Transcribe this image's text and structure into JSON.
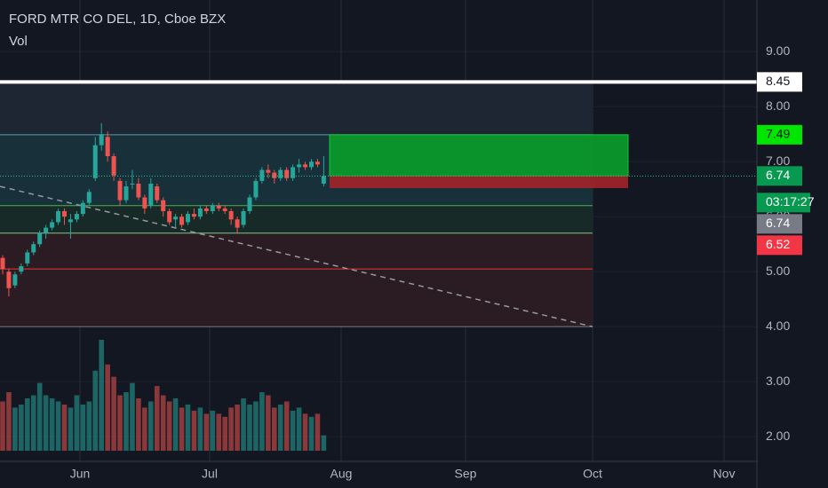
{
  "chart_data": {
    "type": "candlestick",
    "title": "FORD MTR CO DEL, 1D, Cboe BZX",
    "subtitle": "Vol",
    "ylim": [
      1.55,
      9.94
    ],
    "yticks": [
      {
        "value": 2,
        "label": "2.00"
      },
      {
        "value": 3,
        "label": "3.00"
      },
      {
        "value": 4,
        "label": "4.00"
      },
      {
        "value": 5,
        "label": "5.00"
      },
      {
        "value": 6,
        "label": "6.00"
      },
      {
        "value": 7,
        "label": "7.00"
      },
      {
        "value": 8,
        "label": "8.00"
      },
      {
        "value": 9,
        "label": "9.00"
      }
    ],
    "xticks": [
      "Jun",
      "Jul",
      "Aug",
      "Sep",
      "Oct",
      "Nov"
    ],
    "grid": true,
    "up_color": "#26a69a",
    "down_color": "#ef5350",
    "open": [
      5.25,
      5.0,
      4.75,
      5.0,
      5.15,
      5.35,
      5.5,
      5.7,
      5.8,
      5.9,
      6.1,
      5.9,
      5.95,
      6.05,
      6.25,
      6.7,
      7.3,
      7.45,
      7.1,
      6.65,
      6.3,
      6.6,
      6.6,
      6.35,
      6.2,
      6.55,
      6.3,
      6.1,
      5.95,
      6.0,
      5.9,
      6.05,
      6.0,
      6.15,
      6.1,
      6.2,
      6.15,
      6.1,
      5.95,
      5.85,
      6.1,
      6.35,
      6.65,
      6.85,
      6.8,
      6.7,
      6.85,
      6.7,
      6.9,
      6.95,
      6.9,
      7.0,
      6.6
    ],
    "high": [
      5.3,
      5.05,
      5.0,
      5.15,
      5.4,
      5.55,
      5.75,
      5.85,
      5.95,
      6.15,
      6.15,
      6.05,
      6.1,
      6.3,
      6.5,
      7.45,
      7.7,
      7.55,
      7.15,
      6.7,
      6.65,
      6.85,
      6.7,
      6.4,
      6.7,
      6.6,
      6.35,
      6.15,
      6.05,
      6.05,
      6.1,
      6.15,
      6.2,
      6.2,
      6.25,
      6.25,
      6.2,
      6.15,
      6.0,
      6.15,
      6.4,
      6.7,
      6.9,
      6.95,
      6.85,
      6.9,
      6.9,
      6.95,
      7.05,
      7.0,
      7.05,
      7.05,
      7.1
    ],
    "low": [
      4.95,
      4.55,
      4.7,
      4.95,
      5.1,
      5.3,
      5.45,
      5.6,
      5.75,
      5.85,
      5.85,
      5.6,
      5.9,
      6.0,
      6.2,
      6.65,
      7.2,
      7.0,
      6.65,
      6.2,
      6.25,
      6.5,
      6.3,
      6.05,
      6.15,
      6.25,
      6.0,
      5.85,
      5.8,
      5.8,
      5.85,
      5.95,
      5.95,
      6.05,
      6.05,
      6.1,
      6.05,
      5.85,
      5.7,
      5.8,
      6.05,
      6.3,
      6.6,
      6.7,
      6.6,
      6.65,
      6.65,
      6.65,
      6.8,
      6.85,
      6.85,
      6.9,
      6.55
    ],
    "close": [
      5.05,
      4.7,
      4.95,
      5.1,
      5.35,
      5.5,
      5.7,
      5.8,
      5.9,
      6.1,
      6.0,
      5.95,
      6.05,
      6.25,
      6.45,
      7.3,
      7.5,
      7.1,
      6.75,
      6.3,
      6.55,
      6.6,
      6.35,
      6.15,
      6.6,
      6.3,
      6.1,
      5.9,
      6.0,
      5.85,
      6.05,
      6.0,
      6.15,
      6.1,
      6.2,
      6.15,
      6.1,
      5.95,
      5.8,
      6.1,
      6.35,
      6.65,
      6.85,
      6.8,
      6.7,
      6.85,
      6.7,
      6.9,
      6.95,
      6.9,
      7.0,
      6.95,
      6.74
    ],
    "volume": [
      80,
      95,
      70,
      75,
      85,
      90,
      110,
      90,
      85,
      80,
      75,
      70,
      90,
      75,
      80,
      130,
      180,
      140,
      120,
      90,
      95,
      110,
      85,
      70,
      80,
      105,
      90,
      80,
      85,
      70,
      75,
      65,
      70,
      60,
      65,
      60,
      55,
      70,
      75,
      85,
      75,
      80,
      95,
      90,
      70,
      75,
      80,
      65,
      70,
      60,
      55,
      60,
      25
    ],
    "levels": [
      {
        "value": 8.45,
        "color": "#ffffff"
      },
      {
        "value": 7.49,
        "color": "#5b9aa9"
      },
      {
        "value": 6.2,
        "color": "#4caf50"
      },
      {
        "value": 5.7,
        "color": "#81c784"
      },
      {
        "value": 5.05,
        "color": "#e53935"
      },
      {
        "value": 4.0,
        "color": "#787b86"
      }
    ],
    "zone_colors": [
      "#1f2633",
      "#17303a",
      "#182a27",
      "#2a1c22",
      "#2a1c22"
    ],
    "trendline": [
      6.55,
      4.0
    ],
    "position": {
      "target": 7.49,
      "entry": 6.74,
      "stop": 6.52,
      "profit_color": "#089981",
      "loss_color": "#a3252a"
    },
    "countdown": "03:17:27"
  }
}
